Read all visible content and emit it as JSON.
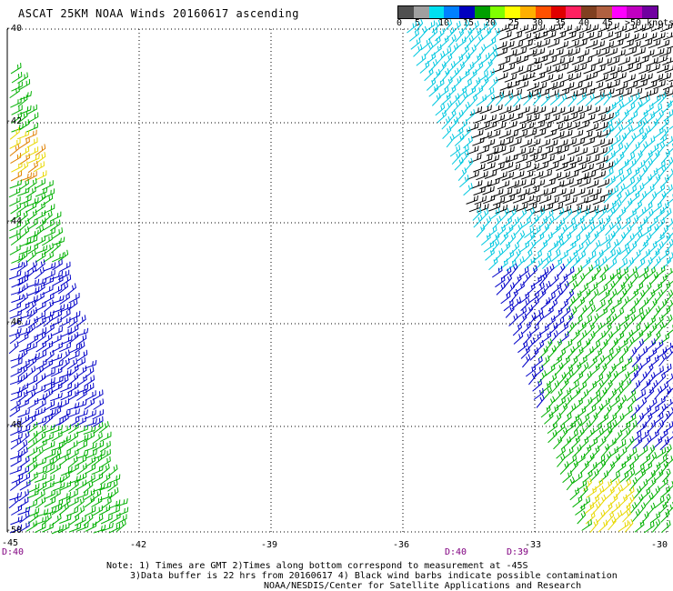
{
  "title": "ASCAT 25KM NOAA Winds 20160617 ascending",
  "legend": {
    "labels": [
      "0",
      "5",
      "10",
      "15",
      "20",
      "25",
      "30",
      "35",
      "40",
      "45",
      ">50 knots"
    ],
    "colors": [
      "#505050",
      "#a0a0a0",
      "#00e0f0",
      "#0080ff",
      "#0000c0",
      "#00a000",
      "#80ff00",
      "#ffff00",
      "#ffb000",
      "#ff5000",
      "#e00000",
      "#ff2060",
      "#804020",
      "#b06040",
      "#ff00ff",
      "#c000c0",
      "#7000a0"
    ]
  },
  "axes": {
    "lon_labels": [
      "-45",
      "-42",
      "-39",
      "-36",
      "-33",
      "-30"
    ],
    "lat_labels": [
      "-40",
      "-42",
      "-44",
      "-46",
      "-48",
      "-50"
    ]
  },
  "time_labels": [
    "D:40",
    "D:40",
    "D:39"
  ],
  "notes": [
    "Note: 1) Times are GMT 2)Times along bottom correspond to measurement at -45S",
    "3)Data buffer is 22 hrs from 20160617 4) Black wind barbs indicate possible contamination",
    "NOAA/NESDIS/Center for Satellite Applications and Research"
  ],
  "barb_colors": {
    "contaminated": "#000000",
    "cyan": "#00c8e0",
    "blue": "#0000c8",
    "green": "#00b000",
    "yellow": "#e8d800",
    "orange": "#e08000"
  }
}
